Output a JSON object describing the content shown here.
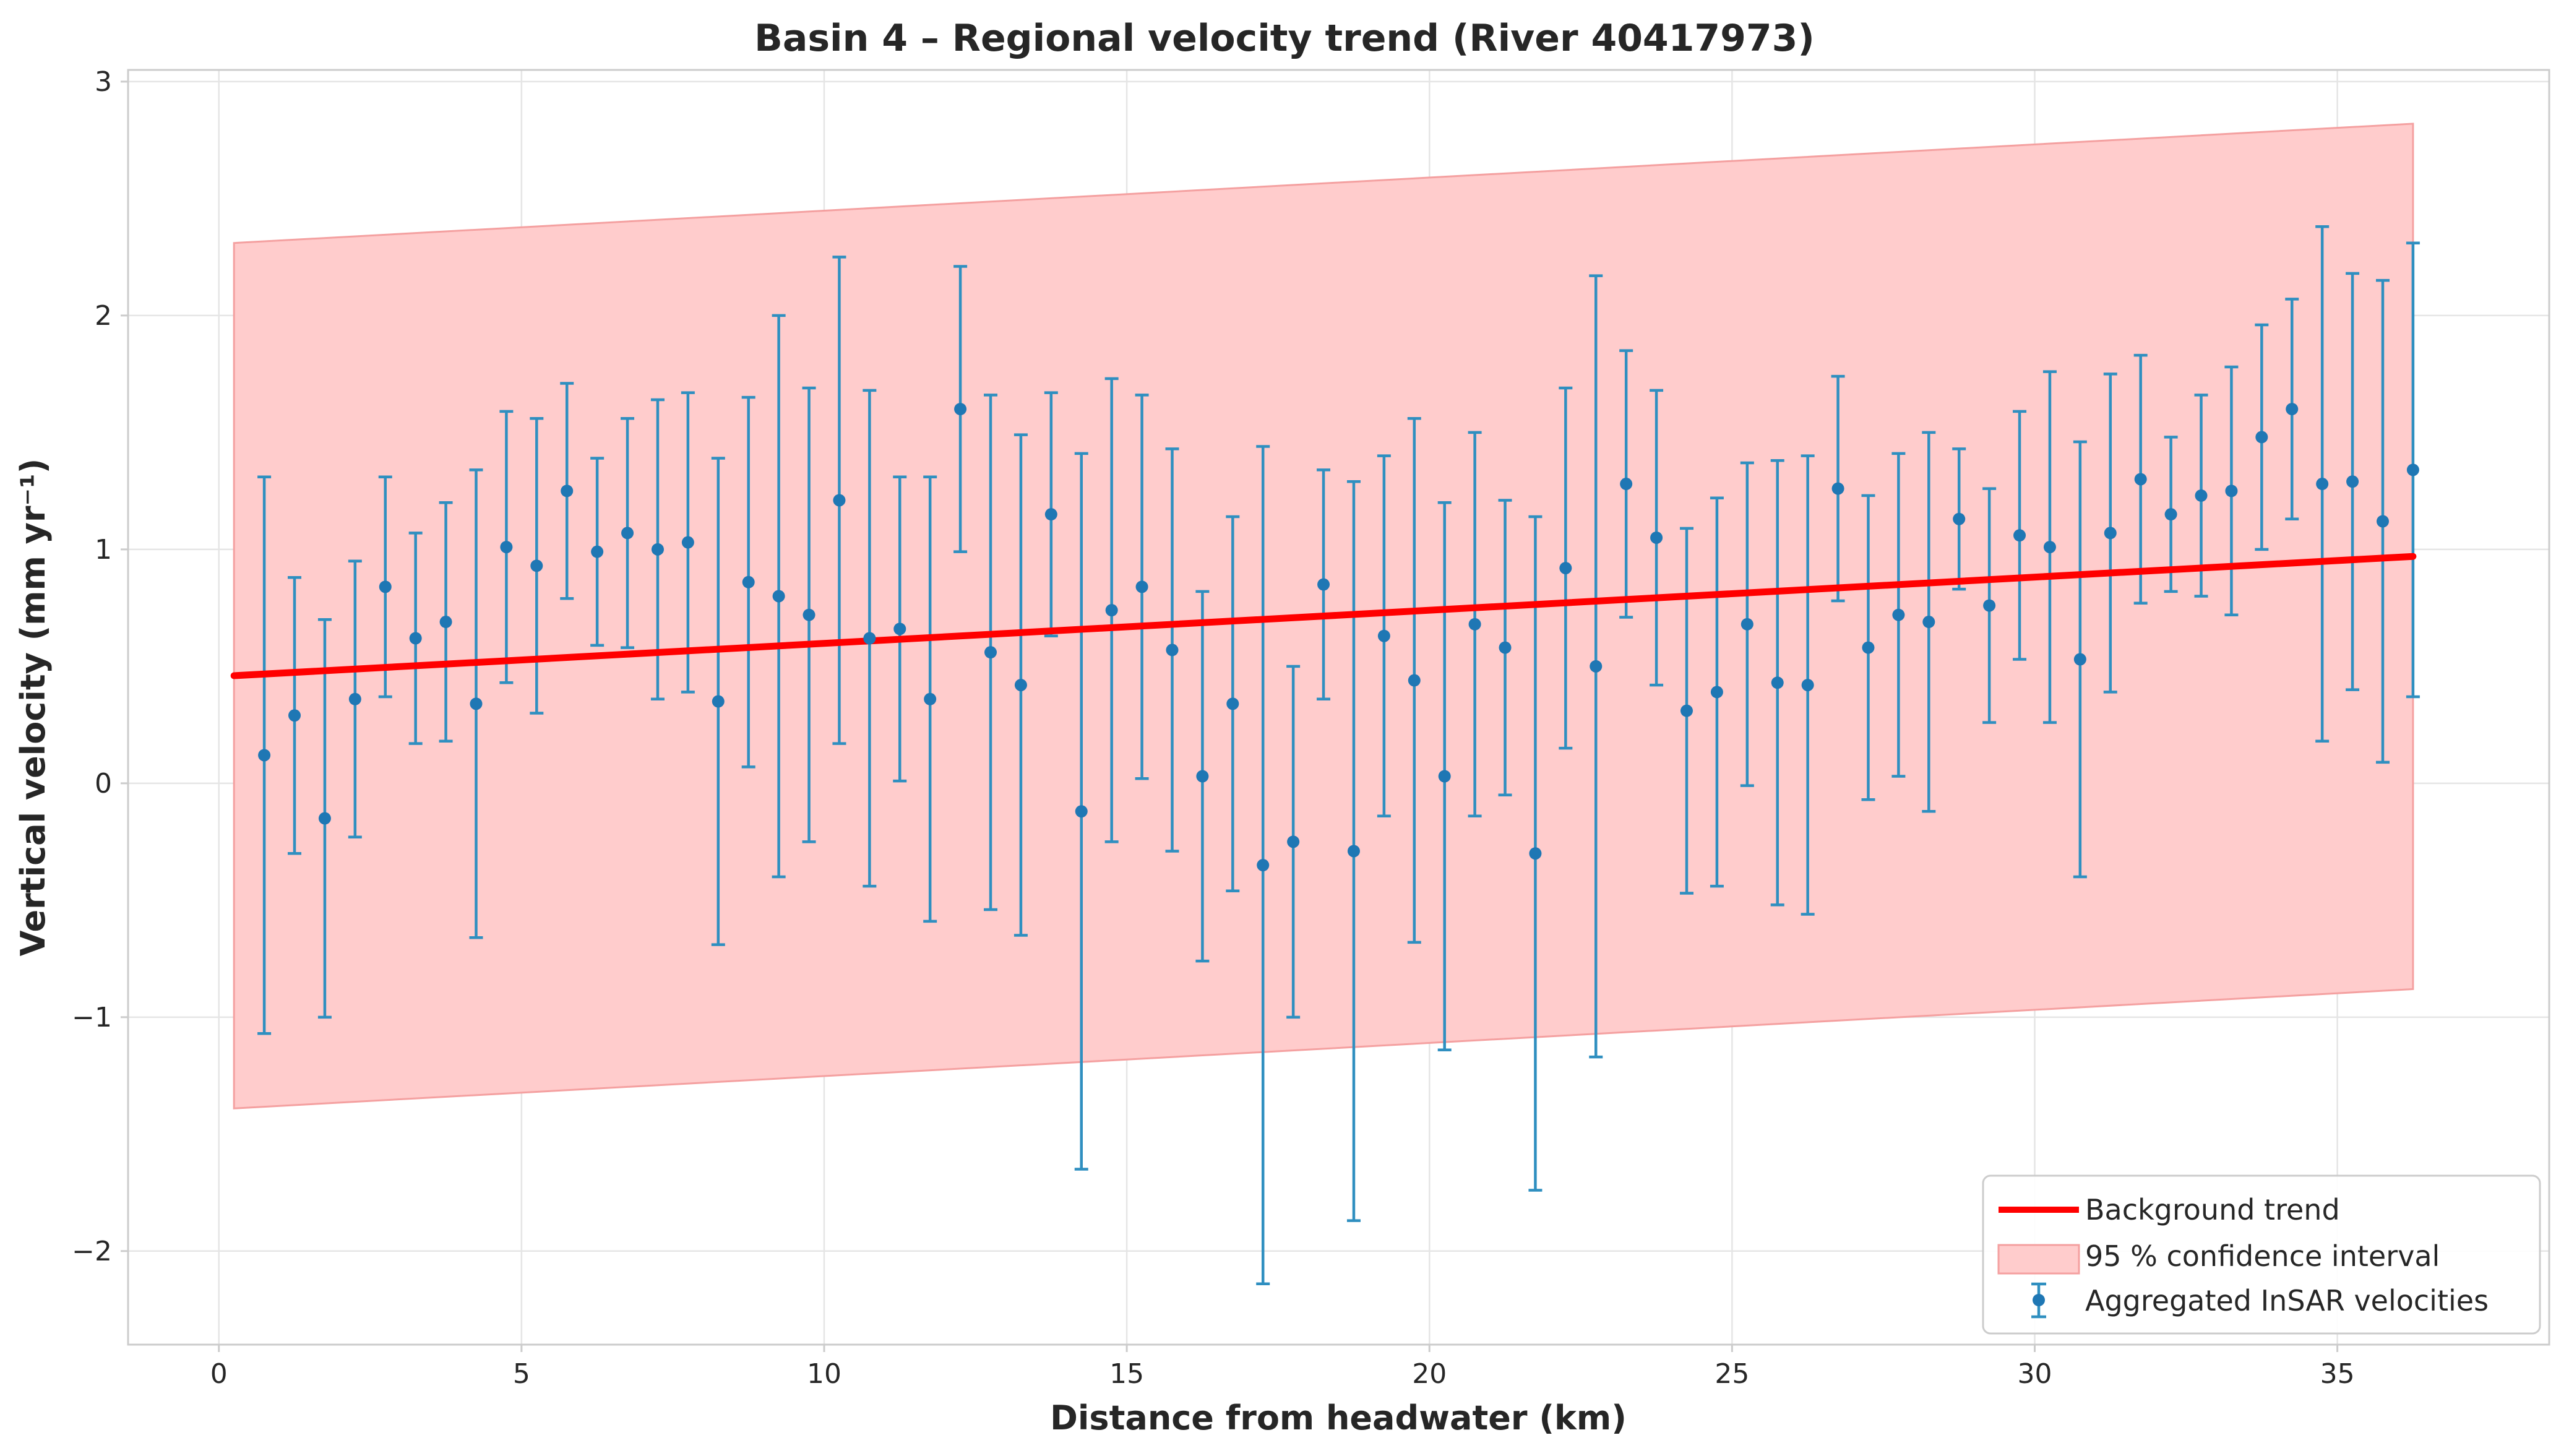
{
  "chart_data": {
    "type": "scatter",
    "title": "Basin 4 – Regional velocity trend (River 40417973)",
    "xlabel": "Distance from headwater (km)",
    "ylabel": "Vertical velocity (mm yr⁻¹)",
    "xlim": [
      -1.5,
      38.5
    ],
    "ylim": [
      -2.4,
      3.05
    ],
    "xticks": [
      0,
      5,
      10,
      15,
      20,
      25,
      30,
      35
    ],
    "yticks": [
      -2,
      -1,
      0,
      1,
      2,
      3
    ],
    "xtick_labels": [
      "0",
      "5",
      "10",
      "15",
      "20",
      "25",
      "30",
      "35"
    ],
    "ytick_labels": [
      "−2",
      "−1",
      "0",
      "1",
      "2",
      "3"
    ],
    "grid": true,
    "legend_position": "bottom-right",
    "colors": {
      "trend": "#ff0000",
      "band": "#ffcccc",
      "band_edge": "#f4a0a0",
      "points": "#1f77b4",
      "errorbars": "#2f8fc0"
    },
    "trend": {
      "name": "Background trend",
      "x": [
        0.25,
        36.25
      ],
      "y": [
        0.46,
        0.97
      ]
    },
    "confidence_band": {
      "name": "95 % confidence interval",
      "x": [
        0.25,
        36.25
      ],
      "upper": [
        2.31,
        2.82
      ],
      "lower": [
        -1.39,
        -0.88
      ]
    },
    "series": [
      {
        "name": "Aggregated InSAR velocities",
        "x": [
          0.75,
          1.25,
          1.75,
          2.25,
          2.75,
          3.25,
          3.75,
          4.25,
          4.75,
          5.25,
          5.75,
          6.25,
          6.75,
          7.25,
          7.75,
          8.25,
          8.75,
          9.25,
          9.75,
          10.25,
          10.75,
          11.25,
          11.75,
          12.25,
          12.75,
          13.25,
          13.75,
          14.25,
          14.75,
          15.25,
          15.75,
          16.25,
          16.75,
          17.25,
          17.75,
          18.25,
          18.75,
          19.25,
          19.75,
          20.25,
          20.75,
          21.25,
          21.75,
          22.25,
          22.75,
          23.25,
          23.75,
          24.25,
          24.75,
          25.25,
          25.75,
          26.25,
          26.75,
          27.25,
          27.75,
          28.25,
          28.75,
          29.25,
          29.75,
          30.25,
          30.75,
          31.25,
          31.75,
          32.25,
          32.75,
          33.25,
          33.75,
          34.25,
          34.75,
          35.25,
          35.75,
          36.25
        ],
        "y": [
          0.12,
          0.29,
          -0.15,
          0.36,
          0.84,
          0.62,
          0.69,
          0.34,
          1.01,
          0.93,
          1.25,
          0.99,
          1.07,
          1.0,
          1.03,
          0.35,
          0.86,
          0.8,
          0.72,
          1.21,
          0.62,
          0.66,
          0.36,
          1.6,
          0.56,
          0.42,
          1.15,
          -0.12,
          0.74,
          0.84,
          0.57,
          0.03,
          0.34,
          -0.35,
          -0.25,
          0.85,
          -0.29,
          0.63,
          0.44,
          0.03,
          0.68,
          0.58,
          -0.3,
          0.92,
          0.5,
          1.28,
          1.05,
          0.31,
          0.39,
          0.68,
          0.43,
          0.42,
          1.26,
          0.58,
          0.72,
          0.69,
          1.13,
          0.76,
          1.06,
          1.01,
          0.53,
          1.07,
          1.3,
          1.15,
          1.23,
          1.25,
          1.48,
          1.6,
          1.28,
          1.29,
          1.12,
          1.34
        ],
        "yerr": [
          1.19,
          0.59,
          0.85,
          0.59,
          0.47,
          0.45,
          0.51,
          1.0,
          0.58,
          0.63,
          0.46,
          0.4,
          0.49,
          0.64,
          0.64,
          1.04,
          0.79,
          1.2,
          0.97,
          1.04,
          1.06,
          0.65,
          0.95,
          0.61,
          1.1,
          1.07,
          0.52,
          1.53,
          0.99,
          0.82,
          0.86,
          0.79,
          0.8,
          1.79,
          0.75,
          0.49,
          1.58,
          0.77,
          1.12,
          1.17,
          0.82,
          0.63,
          1.44,
          0.77,
          1.67,
          0.57,
          0.63,
          0.78,
          0.83,
          0.69,
          0.95,
          0.98,
          0.48,
          0.65,
          0.69,
          0.81,
          0.3,
          0.5,
          0.53,
          0.75,
          0.93,
          0.68,
          0.53,
          0.33,
          0.43,
          0.53,
          0.48,
          0.47,
          1.1,
          0.89,
          1.03,
          0.97
        ]
      }
    ]
  }
}
